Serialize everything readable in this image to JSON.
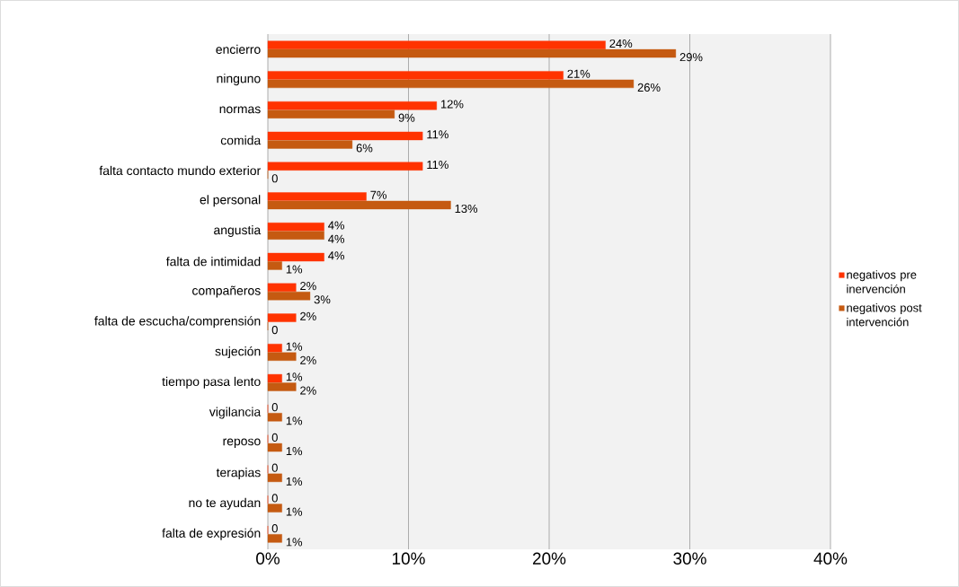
{
  "chart_data": {
    "type": "bar",
    "orientation": "horizontal",
    "categories": [
      "encierro",
      "ninguno",
      "normas",
      "comida",
      "falta contacto mundo exterior",
      "el personal",
      "angustia",
      "falta de intimidad",
      "compañeros",
      "falta de escucha/comprensión",
      "sujeción",
      "tiempo pasa lento",
      "vigilancia",
      "reposo",
      "terapias",
      "no te ayudan",
      "falta de expresión"
    ],
    "series": [
      {
        "name": "negativos pre inervención",
        "color": "#ff3300",
        "values": [
          24,
          21,
          12,
          11,
          11,
          7,
          4,
          4,
          2,
          2,
          1,
          1,
          0,
          0,
          0,
          0,
          0
        ],
        "value_labels": [
          "24%",
          "21%",
          "12%",
          "11%",
          "11%",
          "7%",
          "4%",
          "4%",
          "2%",
          "2%",
          "1%",
          "1%",
          "0",
          "0",
          "0",
          "0",
          "0"
        ]
      },
      {
        "name": "negativos post intervención",
        "color": "#c55a11",
        "values": [
          29,
          26,
          9,
          6,
          0,
          13,
          4,
          1,
          3,
          0,
          2,
          2,
          1,
          1,
          1,
          1,
          1
        ],
        "value_labels": [
          "29%",
          "26%",
          "9%",
          "6%",
          "0",
          "13%",
          "4%",
          "1%",
          "3%",
          "0",
          "2%",
          "2%",
          "1%",
          "1%",
          "1%",
          "1%",
          "1%"
        ]
      }
    ],
    "xlim": [
      0,
      40
    ],
    "xticks": [
      {
        "value": 0,
        "label": "0%"
      },
      {
        "value": 10,
        "label": "10%"
      },
      {
        "value": 20,
        "label": "20%"
      },
      {
        "value": 30,
        "label": "30%"
      },
      {
        "value": 40,
        "label": "40%"
      }
    ],
    "grid": "x",
    "legend": "right"
  }
}
